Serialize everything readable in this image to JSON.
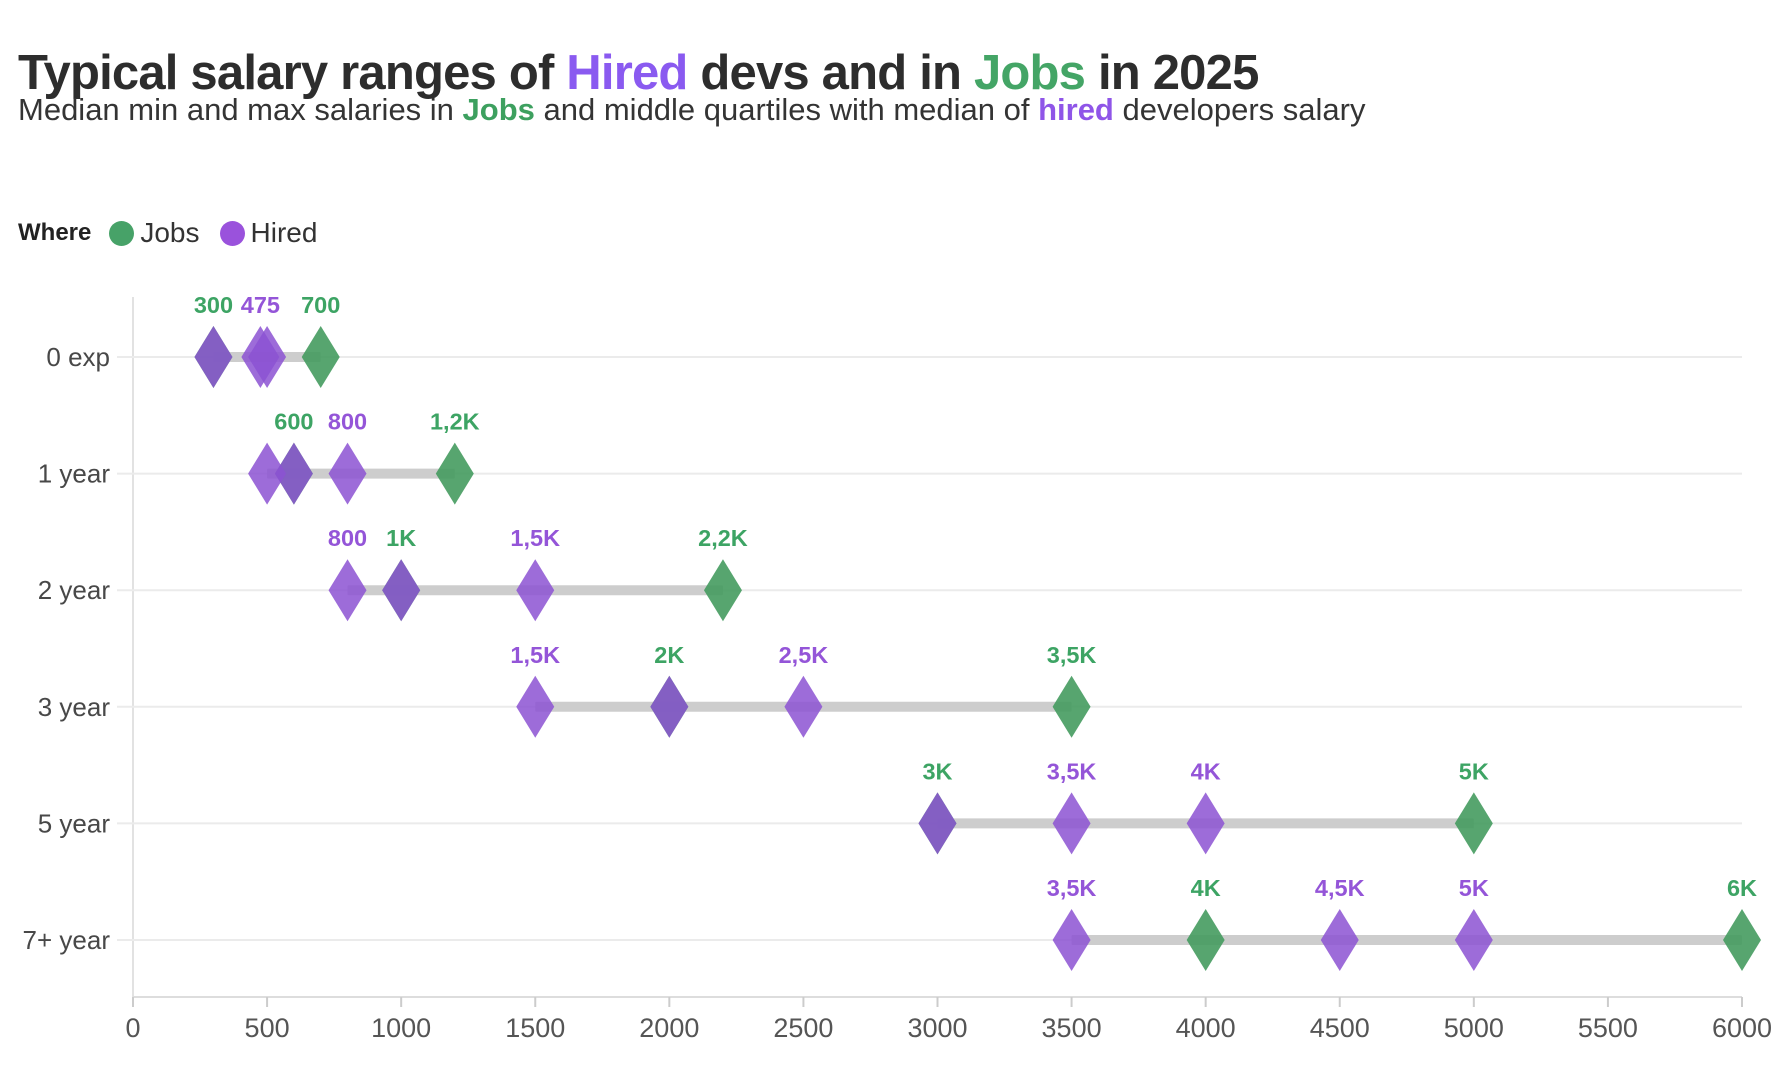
{
  "header": {
    "title_parts": [
      {
        "text": "Typical salary ranges of ",
        "color": "#2d2d2d"
      },
      {
        "text": "Hired",
        "color": "#8a5af0"
      },
      {
        "text": " devs and in ",
        "color": "#2d2d2d"
      },
      {
        "text": "Jobs",
        "color": "#44a566"
      },
      {
        "text": " in 2025",
        "color": "#2d2d2d"
      }
    ],
    "subtitle_parts": [
      {
        "text": "Median min and max salaries in ",
        "color": "#343434"
      },
      {
        "text": "Jobs",
        "color": "#3da05f"
      },
      {
        "text": " and middle quartiles with median of ",
        "color": "#343434"
      },
      {
        "text": "hired",
        "color": "#8f55e8"
      },
      {
        "text": " developers salary",
        "color": "#343434"
      }
    ]
  },
  "legend": {
    "label": "Where",
    "items": [
      {
        "label": "Jobs",
        "color": "#47a268"
      },
      {
        "label": "Hired",
        "color": "#9a52dc"
      }
    ]
  },
  "chart_data": {
    "type": "scatter",
    "variant": "dot-range-plot",
    "title": "Typical salary ranges of Hired devs and in Jobs in 2025",
    "subtitle": "Median min and max salaries in Jobs and middle quartiles with median of hired developers salary",
    "categories": [
      "0 exp",
      "1 year",
      "2 year",
      "3 year",
      "5 year",
      "7+ year"
    ],
    "xlim": [
      0,
      6000
    ],
    "xticks": [
      0,
      500,
      1000,
      1500,
      2000,
      2500,
      3000,
      3500,
      4000,
      4500,
      5000,
      5500,
      6000
    ],
    "grid": "horizontal rows, single vertical axis at 0",
    "legend_position": "top-left",
    "series": [
      {
        "name": "Jobs",
        "marker": "diamond",
        "color": "#459b5f",
        "meaning": "median min and max salary in job postings",
        "min_max": [
          [
            300,
            700
          ],
          [
            600,
            1200
          ],
          [
            1000,
            2200
          ],
          [
            2000,
            3500
          ],
          [
            3000,
            5000
          ],
          [
            4000,
            6000
          ]
        ]
      },
      {
        "name": "Hired",
        "marker": "diamond",
        "color": "#8c52d2",
        "meaning": "lower quartile, median and upper quartile of hired developers salary",
        "quartiles": [
          [
            300,
            475,
            500
          ],
          [
            500,
            600,
            800
          ],
          [
            800,
            1000,
            1500
          ],
          [
            1500,
            2000,
            2500
          ],
          [
            3000,
            3500,
            4000
          ],
          [
            3500,
            4500,
            5000
          ]
        ]
      }
    ],
    "point_labels": [
      [
        {
          "x": 300,
          "text": "300",
          "series": "Jobs"
        },
        {
          "x": 475,
          "text": "475",
          "series": "Hired"
        },
        {
          "x": 700,
          "text": "700",
          "series": "Jobs"
        }
      ],
      [
        {
          "x": 600,
          "text": "600",
          "series": "Jobs"
        },
        {
          "x": 800,
          "text": "800",
          "series": "Hired"
        },
        {
          "x": 1200,
          "text": "1,2K",
          "series": "Jobs"
        }
      ],
      [
        {
          "x": 800,
          "text": "800",
          "series": "Hired"
        },
        {
          "x": 1000,
          "text": "1K",
          "series": "Jobs"
        },
        {
          "x": 1500,
          "text": "1,5K",
          "series": "Hired"
        },
        {
          "x": 2200,
          "text": "2,2K",
          "series": "Jobs"
        }
      ],
      [
        {
          "x": 1500,
          "text": "1,5K",
          "series": "Hired"
        },
        {
          "x": 2000,
          "text": "2K",
          "series": "Jobs"
        },
        {
          "x": 2500,
          "text": "2,5K",
          "series": "Hired"
        },
        {
          "x": 3500,
          "text": "3,5K",
          "series": "Jobs"
        }
      ],
      [
        {
          "x": 3000,
          "text": "3K",
          "series": "Jobs"
        },
        {
          "x": 3500,
          "text": "3,5K",
          "series": "Hired"
        },
        {
          "x": 4000,
          "text": "4K",
          "series": "Hired"
        },
        {
          "x": 5000,
          "text": "5K",
          "series": "Jobs"
        }
      ],
      [
        {
          "x": 3500,
          "text": "3,5K",
          "series": "Hired"
        },
        {
          "x": 4000,
          "text": "4K",
          "series": "Jobs"
        },
        {
          "x": 4500,
          "text": "4,5K",
          "series": "Hired"
        },
        {
          "x": 5000,
          "text": "5K",
          "series": "Hired"
        },
        {
          "x": 6000,
          "text": "6K",
          "series": "Jobs"
        }
      ]
    ],
    "label_colors": {
      "Jobs": "#3da464",
      "Hired": "#9455d8"
    },
    "style": {
      "range_bar_color": "#cdcdcd",
      "row_gridline_color": "#ebebeb",
      "axis_line_color": "#dddddd",
      "tick_color": "#cccccc",
      "tick_label_color": "#555555",
      "category_label_color": "#484848"
    }
  }
}
